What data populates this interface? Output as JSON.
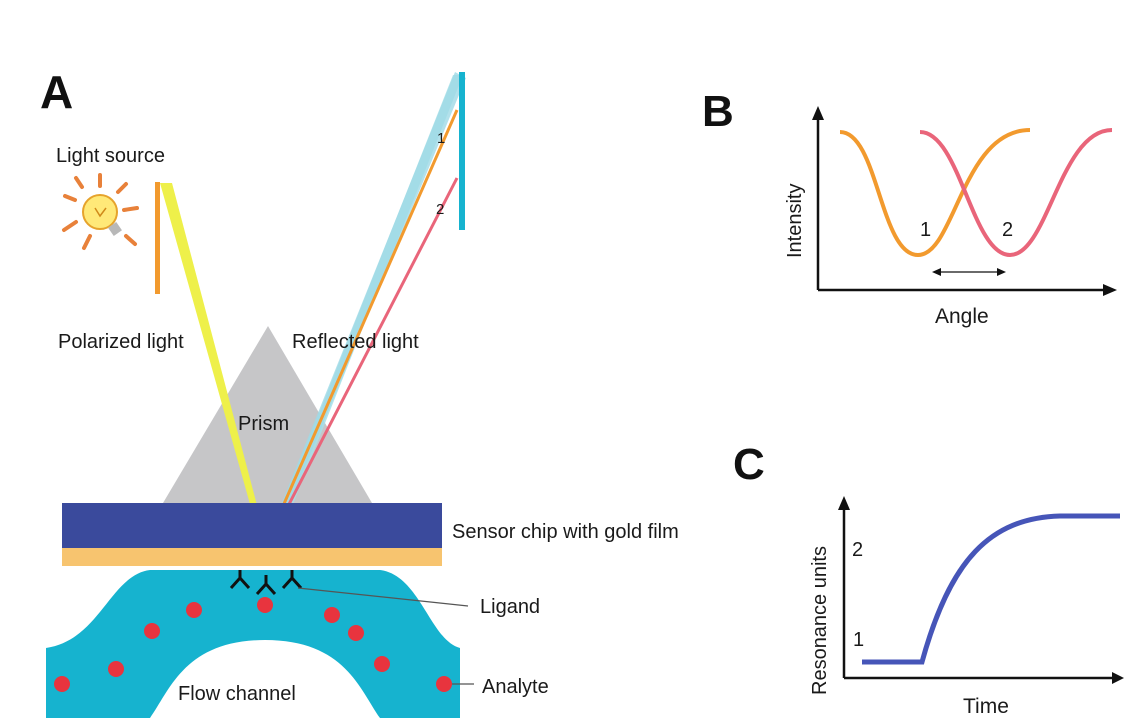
{
  "panel_a": {
    "letter": "A",
    "light_source": "Light source",
    "polarized_light": "Polarized light",
    "reflected_light": "Reflected light",
    "prism": "Prism",
    "sensor_chip": "Sensor chip with gold film",
    "ligand": "Ligand",
    "analyte": "Analyte",
    "flow_channel": "Flow channel",
    "detector_mark_1": "1",
    "detector_mark_2": "2"
  },
  "panel_b": {
    "letter": "B",
    "ylabel": "Intensity",
    "xlabel": "Angle",
    "dip_1": "1",
    "dip_2": "2"
  },
  "panel_c": {
    "letter": "C",
    "ylabel": "Resonance units",
    "xlabel": "Time",
    "level_2": "2",
    "level_1": "1"
  },
  "colors": {
    "orange": "#f29a2e",
    "pink": "#e9657a",
    "cyan": "#16b3cf",
    "blue_chip": "#3a4a9c",
    "gold": "#f7c46f",
    "yellow_beam": "#eef04a",
    "prism_gray": "#c6c6c8",
    "analyte_red": "#e8343e",
    "curve_blue": "#4655b8"
  }
}
